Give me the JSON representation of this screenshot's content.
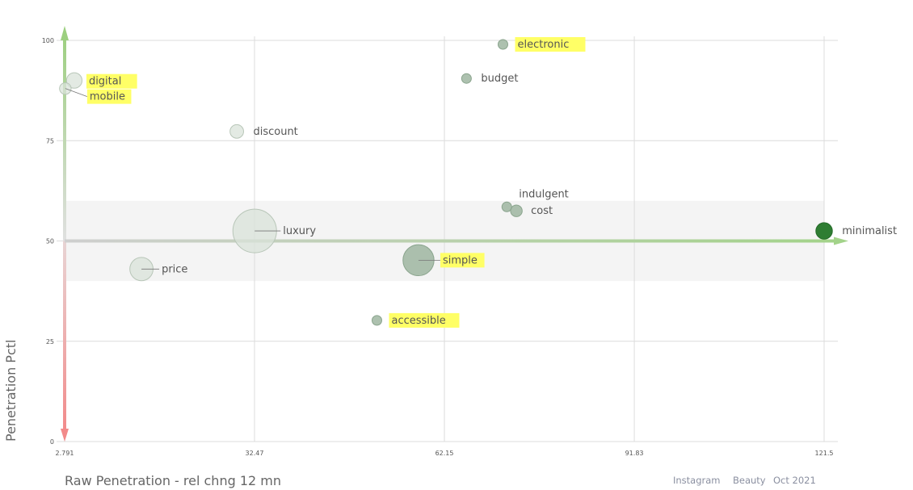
{
  "chart_data": {
    "type": "scatter",
    "xlabel": "Raw Penetration - rel chng 12 mn",
    "ylabel": "Penetration Pctl",
    "x_ticks": [
      "2.791",
      "32.47",
      "62.15",
      "91.83",
      "121.5"
    ],
    "y_ticks": [
      "0",
      "25",
      "50",
      "75",
      "100"
    ],
    "xlim": [
      2.791,
      121.5
    ],
    "ylim": [
      0,
      100
    ],
    "grid": true,
    "band": [
      40,
      60
    ],
    "colors": {
      "bubble_light": "#d9e3d9",
      "bubble_mid": "#98b29b",
      "bubble_dark": "#2e7d32",
      "highlight": "#ffff66",
      "arrow_green": "#a8d08d",
      "arrow_red": "#f08c8c"
    },
    "points": [
      {
        "label": "electronic",
        "x": 71.3,
        "y": 99,
        "size": 1,
        "shade": "mid",
        "highlight": true
      },
      {
        "label": "budget",
        "x": 65.6,
        "y": 90.5,
        "size": 1,
        "shade": "mid",
        "highlight": false
      },
      {
        "label": "digital",
        "x": 4.3,
        "y": 90,
        "size": 1.6,
        "shade": "light",
        "highlight": true
      },
      {
        "label": "mobile",
        "x": 2.9,
        "y": 88,
        "size": 1.2,
        "shade": "light",
        "highlight": true
      },
      {
        "label": "discount",
        "x": 29.7,
        "y": 77.3,
        "size": 1.4,
        "shade": "light",
        "highlight": false
      },
      {
        "label": "indulgent",
        "x": 71.9,
        "y": 58.5,
        "size": 1,
        "shade": "mid",
        "highlight": false
      },
      {
        "label": "cost",
        "x": 73.4,
        "y": 57.5,
        "size": 1.2,
        "shade": "mid",
        "highlight": false
      },
      {
        "label": "luxury",
        "x": 32.5,
        "y": 52.5,
        "size": 4.5,
        "shade": "light",
        "highlight": false
      },
      {
        "label": "minimalist",
        "x": 121.5,
        "y": 52.5,
        "size": 1.7,
        "shade": "dark",
        "highlight": false
      },
      {
        "label": "simple",
        "x": 58.1,
        "y": 45.2,
        "size": 3.2,
        "shade": "mid",
        "highlight": true
      },
      {
        "label": "price",
        "x": 14.8,
        "y": 43,
        "size": 2.4,
        "shade": "light",
        "highlight": false
      },
      {
        "label": "accessible",
        "x": 51.6,
        "y": 30.2,
        "size": 1,
        "shade": "mid",
        "highlight": true
      }
    ]
  },
  "footer": {
    "platform": "Instagram",
    "category": "Beauty",
    "period": "Oct 2021"
  }
}
